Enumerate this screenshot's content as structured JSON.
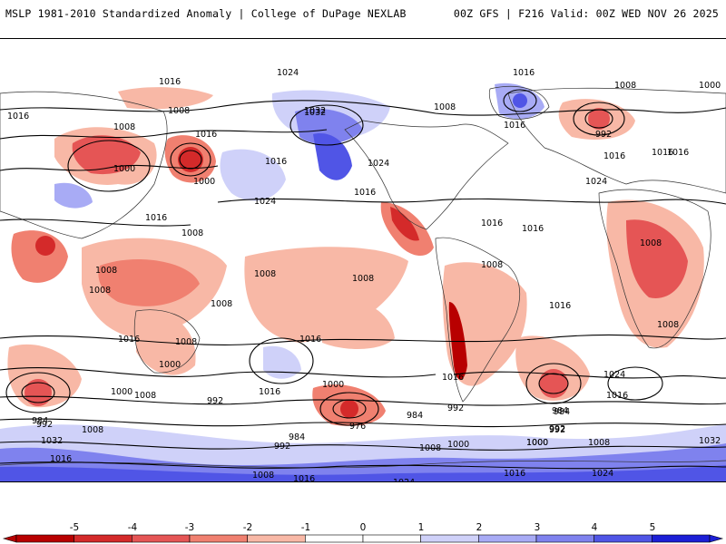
{
  "header": {
    "left_title": "MSLP 1981-2010 Standardized Anomaly | College of DuPage NEXLAB",
    "right_title": "00Z GFS | F216 Valid: 00Z WED NOV 26 2025"
  },
  "map": {
    "projection": "global-equirectangular",
    "isobar_labels": [
      "1016",
      "1024",
      "1016",
      "1008",
      "1032",
      "1016",
      "1000",
      "1008",
      "992",
      "1000",
      "1016",
      "1016",
      "1000",
      "1008",
      "1016",
      "1016",
      "1024",
      "1032",
      "1024",
      "1016",
      "1016",
      "1016",
      "1024",
      "1016",
      "1008",
      "1008",
      "1008",
      "1008",
      "1008",
      "1008",
      "1016",
      "1008",
      "1000",
      "1008",
      "1016",
      "1008",
      "1016",
      "1016",
      "1024",
      "1008",
      "1000",
      "992",
      "984",
      "992",
      "1008",
      "1032",
      "1016",
      "1000",
      "992",
      "984",
      "976",
      "984",
      "992",
      "992",
      "984",
      "1008",
      "1000",
      "1016",
      "1024",
      "1016",
      "1008",
      "1000",
      "984",
      "992",
      "1008",
      "1016",
      "1024",
      "1000",
      "1008",
      "1016",
      "1032",
      "1016",
      "1016",
      "1008"
    ]
  },
  "colorbar": {
    "tick_labels": [
      "-5",
      "-4",
      "-3",
      "-2",
      "-1",
      "0",
      "1",
      "2",
      "3",
      "4",
      "5"
    ],
    "colors": {
      "neg5": "#b80000",
      "neg4": "#d42a2a",
      "neg3": "#e55555",
      "neg2": "#f08070",
      "neg1": "#f8b8a6",
      "zero": "#ffffff",
      "pos1": "#cfd1f9",
      "pos2": "#a8abf5",
      "pos3": "#7f82ee",
      "pos4": "#5055e6",
      "pos5": "#1c1fd6"
    }
  }
}
